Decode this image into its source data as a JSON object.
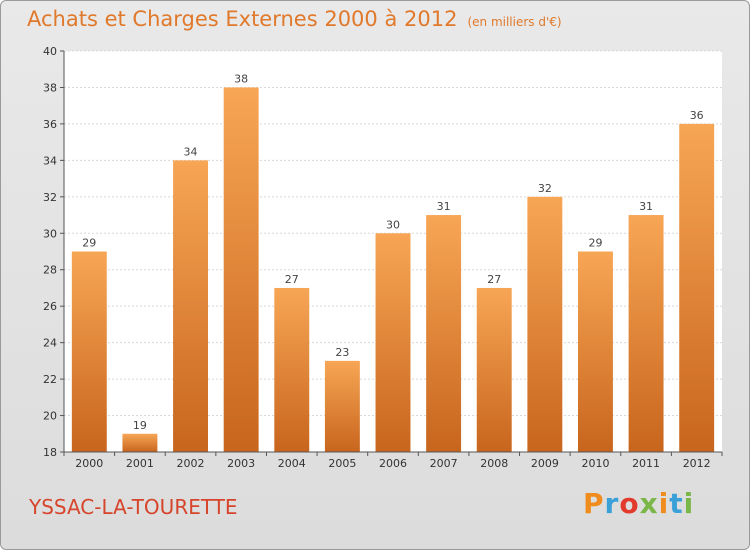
{
  "header": {
    "title": "Achats et Charges Externes 2000 à 2012",
    "unit": "(en milliers d'€)"
  },
  "footer": {
    "commune": "YSSAC-LA-TOURETTE",
    "logo_letters": [
      "P",
      "r",
      "o",
      "x",
      "i",
      "t",
      "i"
    ],
    "logo_colors": [
      "#f08c1e",
      "#3aa0d8",
      "#e23b2e",
      "#7ab648",
      "#f08c1e",
      "#3aa0d8",
      "#7ab648"
    ]
  },
  "colors": {
    "bar_light": "#f7a655",
    "bar_dark": "#c8651d",
    "title": "#e0792b",
    "commune": "#d6452b"
  },
  "chart_data": {
    "type": "bar",
    "title": "Achats et Charges Externes 2000 à 2012",
    "subtitle": "(en milliers d'€)",
    "categories": [
      "2000",
      "2001",
      "2002",
      "2003",
      "2004",
      "2005",
      "2006",
      "2007",
      "2008",
      "2009",
      "2010",
      "2011",
      "2012"
    ],
    "values": [
      29,
      19,
      34,
      38,
      27,
      23,
      30,
      31,
      27,
      32,
      29,
      31,
      36
    ],
    "ylim": [
      18,
      40
    ],
    "yticks": [
      18,
      20,
      22,
      24,
      26,
      28,
      30,
      32,
      34,
      36,
      38,
      40
    ],
    "grid": true,
    "data_labels": true
  }
}
